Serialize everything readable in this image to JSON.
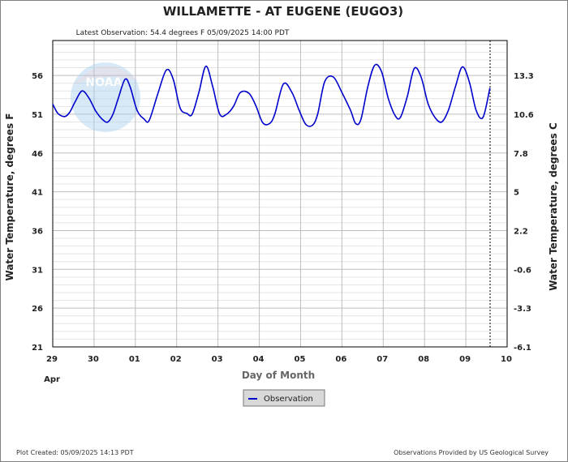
{
  "chart_data": {
    "type": "line",
    "title": "WILLAMETTE - AT EUGENE  (EUGO3)",
    "subtitle": "Latest Observation: 54.4 degrees F 05/09/2025 14:00 PDT",
    "xlabel": "Day of Month",
    "ylabel": "Water Temperature, degrees F",
    "y2label": "Water Temperature, degrees C",
    "x_month_label": "Apr",
    "x_tick_labels": [
      "29",
      "30",
      "01",
      "02",
      "03",
      "04",
      "05",
      "06",
      "07",
      "08",
      "09",
      "10"
    ],
    "y_tick_labels": [
      "21",
      "26",
      "31",
      "36",
      "41",
      "46",
      "51",
      "56"
    ],
    "y2_tick_labels": [
      "-6.1",
      "-3.3",
      "-0.6",
      "2.2",
      "5",
      "7.8",
      "10.6",
      "13.3"
    ],
    "xlim": [
      "2025-04-29 00:00",
      "2025-05-10 00:00"
    ],
    "ylim": [
      21,
      60.5
    ],
    "grid": true,
    "legend": "bottom-center",
    "series": [
      {
        "name": "Observation",
        "color": "#0000cc",
        "x": [
          "04-29 00:00",
          "04-29 03:00",
          "04-29 07:00",
          "04-29 10:00",
          "04-29 13:00",
          "04-29 17:00",
          "04-29 21:00",
          "04-30 01:00",
          "04-30 05:00",
          "04-30 08:00",
          "04-30 11:00",
          "04-30 14:00",
          "04-30 18:00",
          "04-30 21:00",
          "05-01 01:00",
          "05-01 05:00",
          "05-01 08:00",
          "05-01 13:00",
          "05-01 18:00",
          "05-01 22:00",
          "05-02 02:00",
          "05-02 06:00",
          "05-02 09:00",
          "05-02 13:00",
          "05-02 17:00",
          "05-02 21:00",
          "05-03 01:00",
          "05-03 05:00",
          "05-03 09:00",
          "05-03 13:00",
          "05-03 18:00",
          "05-03 22:00",
          "05-04 02:00",
          "05-04 06:00",
          "05-04 09:00",
          "05-04 14:00",
          "05-04 19:00",
          "05-04 23:00",
          "05-05 03:00",
          "05-05 07:00",
          "05-05 10:00",
          "05-05 14:00",
          "05-05 19:00",
          "05-06 00:00",
          "05-06 05:00",
          "05-06 08:00",
          "05-06 11:00",
          "05-06 15:00",
          "05-06 19:00",
          "05-06 23:00",
          "05-07 03:00",
          "05-07 07:00",
          "05-07 10:00",
          "05-07 14:00",
          "05-07 18:00",
          "05-07 22:00",
          "05-08 02:00",
          "05-08 06:00",
          "05-08 10:00",
          "05-08 14:00",
          "05-08 18:00",
          "05-08 22:00",
          "05-09 02:00",
          "05-09 06:00",
          "05-09 10:00",
          "05-09 14:00"
        ],
        "y": [
          52.3,
          51.1,
          50.7,
          51.3,
          52.6,
          54.0,
          53.1,
          51.4,
          50.3,
          50.0,
          51.0,
          53.0,
          55.5,
          54.5,
          51.5,
          50.4,
          50.2,
          53.6,
          56.7,
          55.5,
          51.8,
          51.1,
          51.0,
          53.9,
          57.2,
          54.5,
          51.0,
          51.0,
          52.0,
          53.8,
          53.7,
          52.1,
          49.9,
          49.8,
          51.0,
          54.9,
          53.8,
          51.6,
          49.7,
          49.6,
          51.1,
          55.2,
          55.8,
          53.8,
          51.5,
          49.8,
          50.3,
          54.5,
          57.3,
          56.5,
          53.0,
          50.8,
          50.6,
          53.3,
          56.9,
          55.8,
          52.4,
          50.6,
          50.0,
          51.6,
          54.6,
          57.1,
          55.2,
          51.5,
          50.6,
          54.4
        ]
      }
    ]
  },
  "footer": {
    "plot_created": "Plot Created: 05/09/2025 14:13 PDT",
    "provider": "Observations Provided by US Geological Survey"
  },
  "watermark": {
    "text": "NOAA"
  }
}
